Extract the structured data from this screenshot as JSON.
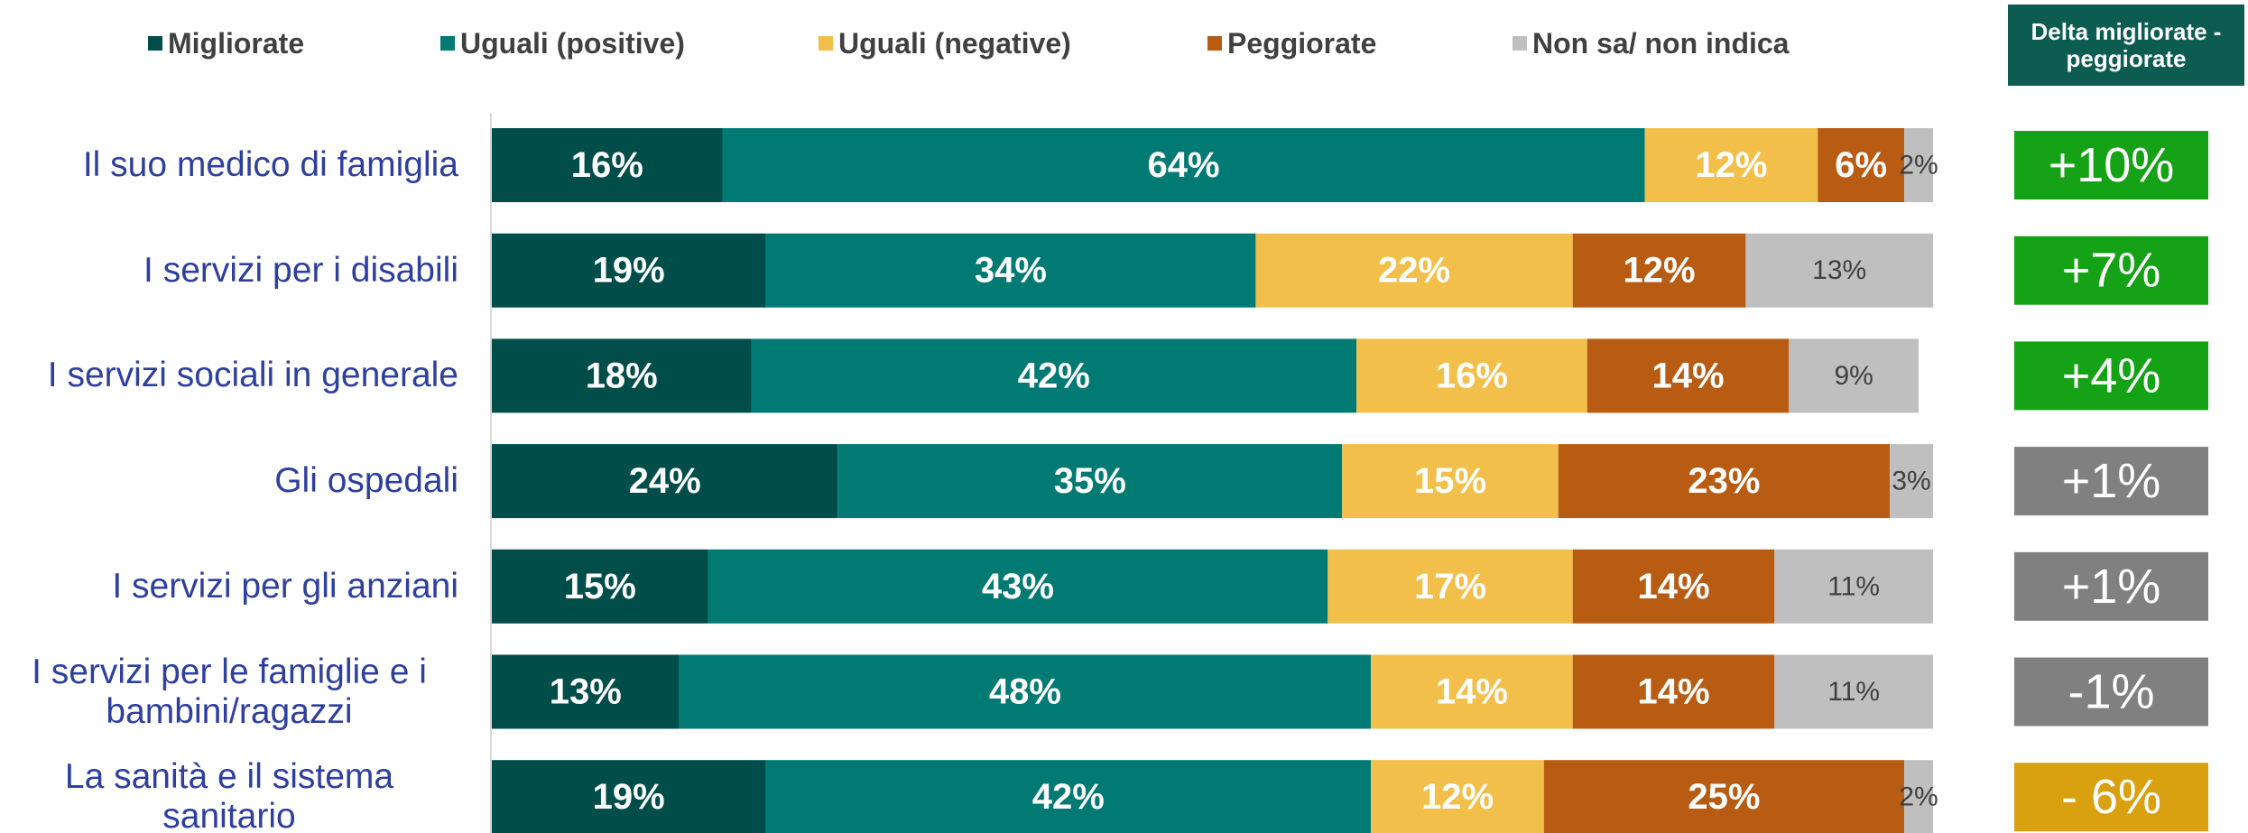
{
  "chart_data": {
    "type": "stacked_barh",
    "categories": [
      "Il suo medico di famiglia",
      "I servizi per i disabili",
      "I servizi sociali in generale",
      "Gli ospedali",
      "I servizi per gli anziani",
      "I servizi per le famiglie e i bambini/ragazzi",
      "La sanità e il sistema sanitario"
    ],
    "xlim": [
      0,
      100
    ],
    "series": [
      {
        "name": "Migliorate",
        "color": "#004d4a",
        "values": [
          16,
          19,
          18,
          24,
          15,
          13,
          19
        ],
        "value_labels": [
          "16%",
          "19%",
          "18%",
          "24%",
          "15%",
          "13%",
          "19%"
        ]
      },
      {
        "name": "Uguali (positive)",
        "color": "#017a73",
        "values": [
          64,
          34,
          42,
          35,
          43,
          48,
          42
        ],
        "value_labels": [
          "64%",
          "34%",
          "42%",
          "35%",
          "43%",
          "48%",
          "42%"
        ]
      },
      {
        "name": "Uguali (negative)",
        "color": "#f2c04a",
        "values": [
          12,
          22,
          16,
          15,
          17,
          14,
          12
        ],
        "value_labels": [
          "12%",
          "22%",
          "16%",
          "15%",
          "17%",
          "14%",
          "12%"
        ]
      },
      {
        "name": "Peggiorate",
        "color": "#b85c14",
        "values": [
          6,
          12,
          14,
          23,
          14,
          14,
          25
        ],
        "value_labels": [
          "6%",
          "12%",
          "14%",
          "23%",
          "14%",
          "14%",
          "25%"
        ]
      },
      {
        "name": "Non sa/ non indica",
        "color": "#bfbfbf",
        "values": [
          2,
          13,
          9,
          3,
          11,
          11,
          2
        ],
        "value_labels": [
          "2%",
          "13%",
          "9%",
          "3%",
          "11%",
          "11%",
          "2%"
        ]
      }
    ],
    "delta": {
      "title": "Delta migliorate - peggiorate",
      "values": [
        10,
        7,
        4,
        1,
        1,
        -1,
        -6
      ],
      "value_labels": [
        "+10%",
        "+7%",
        "+4%",
        "+1%",
        "+1%",
        "-1%",
        "- 6%"
      ],
      "colors": [
        "#16a216",
        "#16a216",
        "#16a216",
        "#808080",
        "#808080",
        "#808080",
        "#d9a010"
      ]
    }
  }
}
